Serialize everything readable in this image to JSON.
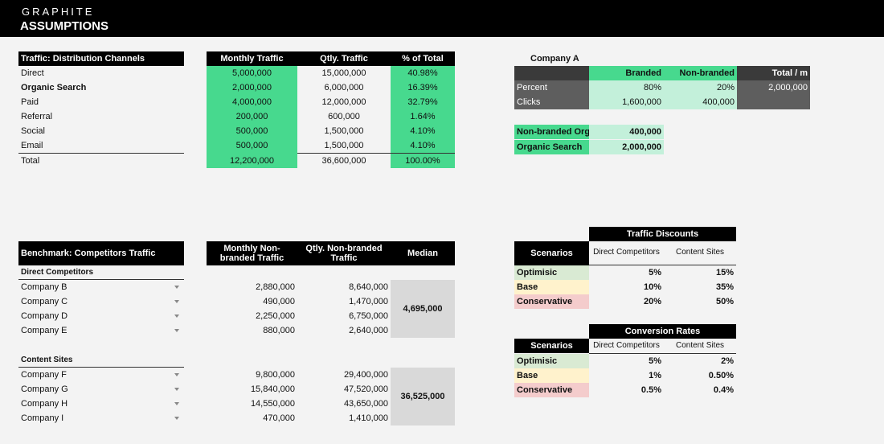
{
  "header": {
    "brand": "GRAPHITE",
    "title": "ASSUMPTIONS"
  },
  "traffic": {
    "title": "Traffic: Distribution Channels",
    "col_monthly": "Monthly Traffic",
    "col_qtly": "Qtly. Traffic",
    "col_pct": "% of Total",
    "rows": [
      {
        "label": "Direct",
        "monthly": "5,000,000",
        "qtly": "15,000,000",
        "pct": "40.98%"
      },
      {
        "label": "Organic Search",
        "monthly": "2,000,000",
        "qtly": "6,000,000",
        "pct": "16.39%"
      },
      {
        "label": "Paid",
        "monthly": "4,000,000",
        "qtly": "12,000,000",
        "pct": "32.79%"
      },
      {
        "label": "Referral",
        "monthly": "200,000",
        "qtly": "600,000",
        "pct": "1.64%"
      },
      {
        "label": "Social",
        "monthly": "500,000",
        "qtly": "1,500,000",
        "pct": "4.10%"
      },
      {
        "label": "Email",
        "monthly": "500,000",
        "qtly": "1,500,000",
        "pct": "4.10%"
      }
    ],
    "total": {
      "label": "Total",
      "monthly": "12,200,000",
      "qtly": "36,600,000",
      "pct": "100.00%"
    }
  },
  "companyA": {
    "title": "Company A",
    "col_branded": "Branded",
    "col_nonbranded": "Non-branded",
    "col_total": "Total / m",
    "percent_label": "Percent",
    "percent_branded": "80%",
    "percent_nonbranded": "20%",
    "total_value": "2,000,000",
    "clicks_label": "Clicks",
    "clicks_branded": "1,600,000",
    "clicks_nonbranded": "400,000",
    "nonbranded_label": "Non-branded Orga",
    "nonbranded_value": "400,000",
    "organic_label": "Organic Search",
    "organic_value": "2,000,000"
  },
  "benchmark": {
    "title": "Benchmark: Competitors Traffic",
    "col_monthly": "Monthly Non-branded Traffic",
    "col_qtly": "Qtly. Non-branded Traffic",
    "col_median": "Median",
    "direct_title": "Direct Competitors",
    "direct": [
      {
        "label": "Company B",
        "monthly": "2,880,000",
        "qtly": "8,640,000"
      },
      {
        "label": "Company C",
        "monthly": "490,000",
        "qtly": "1,470,000"
      },
      {
        "label": "Company D",
        "monthly": "2,250,000",
        "qtly": "6,750,000"
      },
      {
        "label": "Company E",
        "monthly": "880,000",
        "qtly": "2,640,000"
      }
    ],
    "direct_median": "4,695,000",
    "content_title": "Content Sites",
    "content": [
      {
        "label": "Company F",
        "monthly": "9,800,000",
        "qtly": "29,400,000"
      },
      {
        "label": "Company G",
        "monthly": "15,840,000",
        "qtly": "47,520,000"
      },
      {
        "label": "Company H",
        "monthly": "14,550,000",
        "qtly": "43,650,000"
      },
      {
        "label": "Company I",
        "monthly": "470,000",
        "qtly": "1,410,000"
      }
    ],
    "content_median": "36,525,000"
  },
  "discounts": {
    "title": "Traffic Discounts",
    "scenarios_label": "Scenarios",
    "col_direct": "Direct Competitors",
    "col_content": "Content Sites",
    "rows": [
      {
        "label": "Optimisic",
        "direct": "5%",
        "content": "15%"
      },
      {
        "label": "Base",
        "direct": "10%",
        "content": "35%"
      },
      {
        "label": "Conservative",
        "direct": "20%",
        "content": "50%"
      }
    ]
  },
  "conversion": {
    "title": "Conversion Rates",
    "scenarios_label": "Scenarios",
    "col_direct": "Direct Competitors",
    "col_content": "Content Sites",
    "rows": [
      {
        "label": "Optimisic",
        "direct": "5%",
        "content": "2%"
      },
      {
        "label": "Base",
        "direct": "1%",
        "content": "0.50%"
      },
      {
        "label": "Conservative",
        "direct": "0.5%",
        "content": "0.4%"
      }
    ]
  }
}
